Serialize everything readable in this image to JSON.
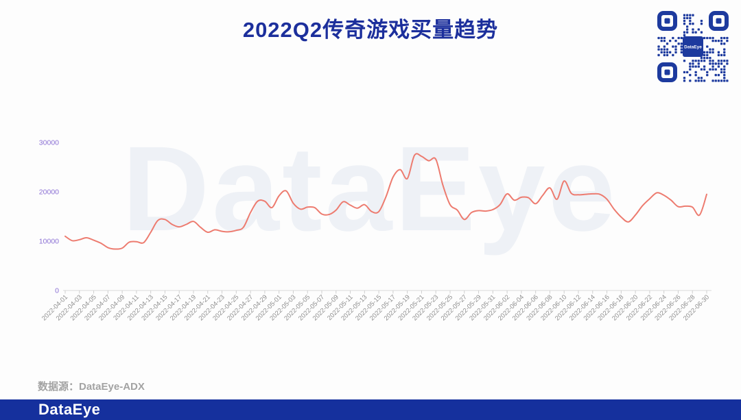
{
  "header": {
    "title": "2022Q2传奇游戏买量趋势"
  },
  "qr": {
    "center_label": "DataEye"
  },
  "watermark": {
    "text": "DataEye"
  },
  "source": {
    "label": "数据源：DataEye-ADX"
  },
  "footer": {
    "logo_text": "DataEye"
  },
  "colors": {
    "title_blue": "#1c2f9c",
    "line": "#ed7b6f",
    "y_label_purple": "#8a6fd4",
    "x_label_gray": "#8e8e8e",
    "axis_gray": "#d9d9d9",
    "watermark_gray": "#eef1f6",
    "footer_blue": "#15309d",
    "qr_blue": "#1d3a9e",
    "source_gray": "#a3a3a3"
  },
  "chart_data": {
    "type": "line",
    "title": "2022Q2传奇游戏买量趋势",
    "xlabel": "",
    "ylabel": "",
    "ylim": [
      0,
      30000
    ],
    "yticks": [
      0,
      10000,
      20000,
      30000
    ],
    "grid": false,
    "legend_position": "none",
    "x_label_every": 2,
    "line_color": "#ed7b6f",
    "x": [
      "2022-04-01",
      "2022-04-02",
      "2022-04-03",
      "2022-04-04",
      "2022-04-05",
      "2022-04-06",
      "2022-04-07",
      "2022-04-08",
      "2022-04-09",
      "2022-04-10",
      "2022-04-11",
      "2022-04-12",
      "2022-04-13",
      "2022-04-14",
      "2022-04-15",
      "2022-04-16",
      "2022-04-17",
      "2022-04-18",
      "2022-04-19",
      "2022-04-20",
      "2022-04-21",
      "2022-04-22",
      "2022-04-23",
      "2022-04-24",
      "2022-04-25",
      "2022-04-26",
      "2022-04-27",
      "2022-04-28",
      "2022-04-29",
      "2022-04-30",
      "2022-05-01",
      "2022-05-02",
      "2022-05-03",
      "2022-05-04",
      "2022-05-05",
      "2022-05-06",
      "2022-05-07",
      "2022-05-08",
      "2022-05-09",
      "2022-05-10",
      "2022-05-11",
      "2022-05-12",
      "2022-05-13",
      "2022-05-14",
      "2022-05-15",
      "2022-05-16",
      "2022-05-17",
      "2022-05-18",
      "2022-05-19",
      "2022-05-20",
      "2022-05-21",
      "2022-05-22",
      "2022-05-23",
      "2022-05-24",
      "2022-05-25",
      "2022-05-26",
      "2022-05-27",
      "2022-05-28",
      "2022-05-29",
      "2022-05-30",
      "2022-05-31",
      "2022-06-01",
      "2022-06-02",
      "2022-06-03",
      "2022-06-04",
      "2022-06-05",
      "2022-06-06",
      "2022-06-07",
      "2022-06-08",
      "2022-06-09",
      "2022-06-10",
      "2022-06-11",
      "2022-06-12",
      "2022-06-13",
      "2022-06-14",
      "2022-06-15",
      "2022-06-16",
      "2022-06-17",
      "2022-06-18",
      "2022-06-19",
      "2022-06-20",
      "2022-06-21",
      "2022-06-22",
      "2022-06-23",
      "2022-06-24",
      "2022-06-25",
      "2022-06-26",
      "2022-06-27",
      "2022-06-28",
      "2022-06-29",
      "2022-06-30"
    ],
    "values": [
      11000,
      10100,
      10300,
      10700,
      10200,
      9600,
      8700,
      8400,
      8600,
      9800,
      9900,
      9700,
      11800,
      14200,
      14400,
      13400,
      12900,
      13400,
      14000,
      12800,
      11800,
      12300,
      12000,
      11900,
      12200,
      12800,
      15800,
      18100,
      18100,
      16800,
      19200,
      20200,
      17700,
      16500,
      16900,
      16800,
      15500,
      15400,
      16300,
      18000,
      17300,
      16700,
      17400,
      16000,
      16000,
      19000,
      23000,
      24500,
      22700,
      27400,
      27200,
      26300,
      26600,
      21300,
      17400,
      16300,
      14400,
      15800,
      16200,
      16100,
      16400,
      17400,
      19600,
      18300,
      18900,
      18800,
      17600,
      19300,
      20800,
      18500,
      22200,
      19700,
      19400,
      19500,
      19600,
      19500,
      18500,
      16500,
      14900,
      13900,
      15300,
      17200,
      18600,
      19800,
      19300,
      18300,
      17000,
      17100,
      16900,
      15300,
      19500
    ]
  }
}
